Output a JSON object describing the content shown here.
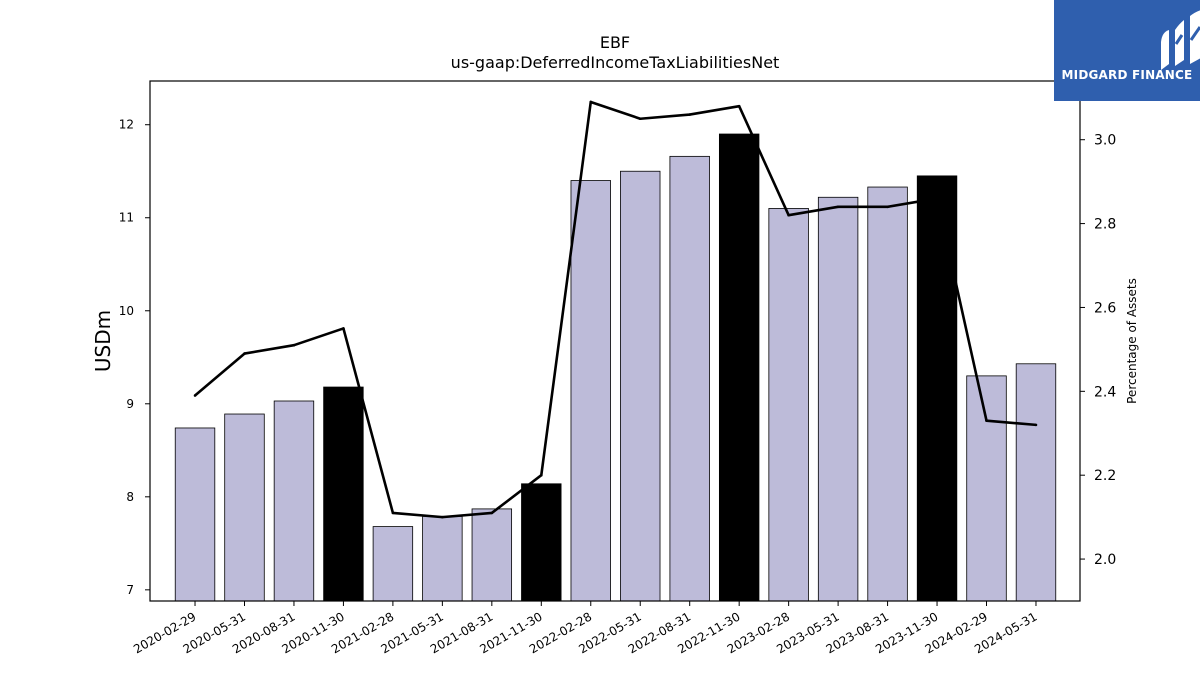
{
  "logo": {
    "text": "MIDGARD FINANCE",
    "background": "#2f5fae"
  },
  "chart_data": {
    "type": "bar",
    "title": "EBF",
    "subtitle": "us-gaap:DeferredIncomeTaxLiabilitiesNet",
    "ylabel": "USDm",
    "y2label": "Percentage of Assets",
    "ylim": [
      6.88,
      12.47
    ],
    "y2lim": [
      1.9,
      3.14
    ],
    "yticks": [
      7,
      8,
      9,
      10,
      11,
      12
    ],
    "y2ticks": [
      "2.0",
      "2.2",
      "2.4",
      "2.6",
      "2.8",
      "3.0"
    ],
    "categories": [
      "2020-02-29",
      "2020-05-31",
      "2020-08-31",
      "2020-11-30",
      "2021-02-28",
      "2021-05-31",
      "2021-08-31",
      "2021-11-30",
      "2022-02-28",
      "2022-05-31",
      "2022-08-31",
      "2022-11-30",
      "2023-02-28",
      "2023-05-31",
      "2023-08-31",
      "2023-11-30",
      "2024-02-29",
      "2024-05-31"
    ],
    "series": [
      {
        "type": "bar",
        "axis": "left",
        "values": [
          8.74,
          8.89,
          9.03,
          9.18,
          7.68,
          7.79,
          7.87,
          8.14,
          11.4,
          11.5,
          11.66,
          11.9,
          11.1,
          11.22,
          11.33,
          11.45,
          9.3,
          9.43
        ],
        "highlighted": [
          false,
          false,
          false,
          true,
          false,
          false,
          false,
          true,
          false,
          false,
          false,
          true,
          false,
          false,
          false,
          true,
          false,
          false
        ]
      },
      {
        "type": "line",
        "axis": "right",
        "values": [
          2.39,
          2.49,
          2.51,
          2.55,
          2.11,
          2.1,
          2.11,
          2.2,
          3.09,
          3.05,
          3.06,
          3.08,
          2.82,
          2.84,
          2.84,
          2.86,
          2.33,
          2.32
        ]
      }
    ],
    "colors": {
      "bar": "#bdbbd9",
      "bar_highlight": "#000000",
      "line": "#000000"
    },
    "grid": false
  }
}
